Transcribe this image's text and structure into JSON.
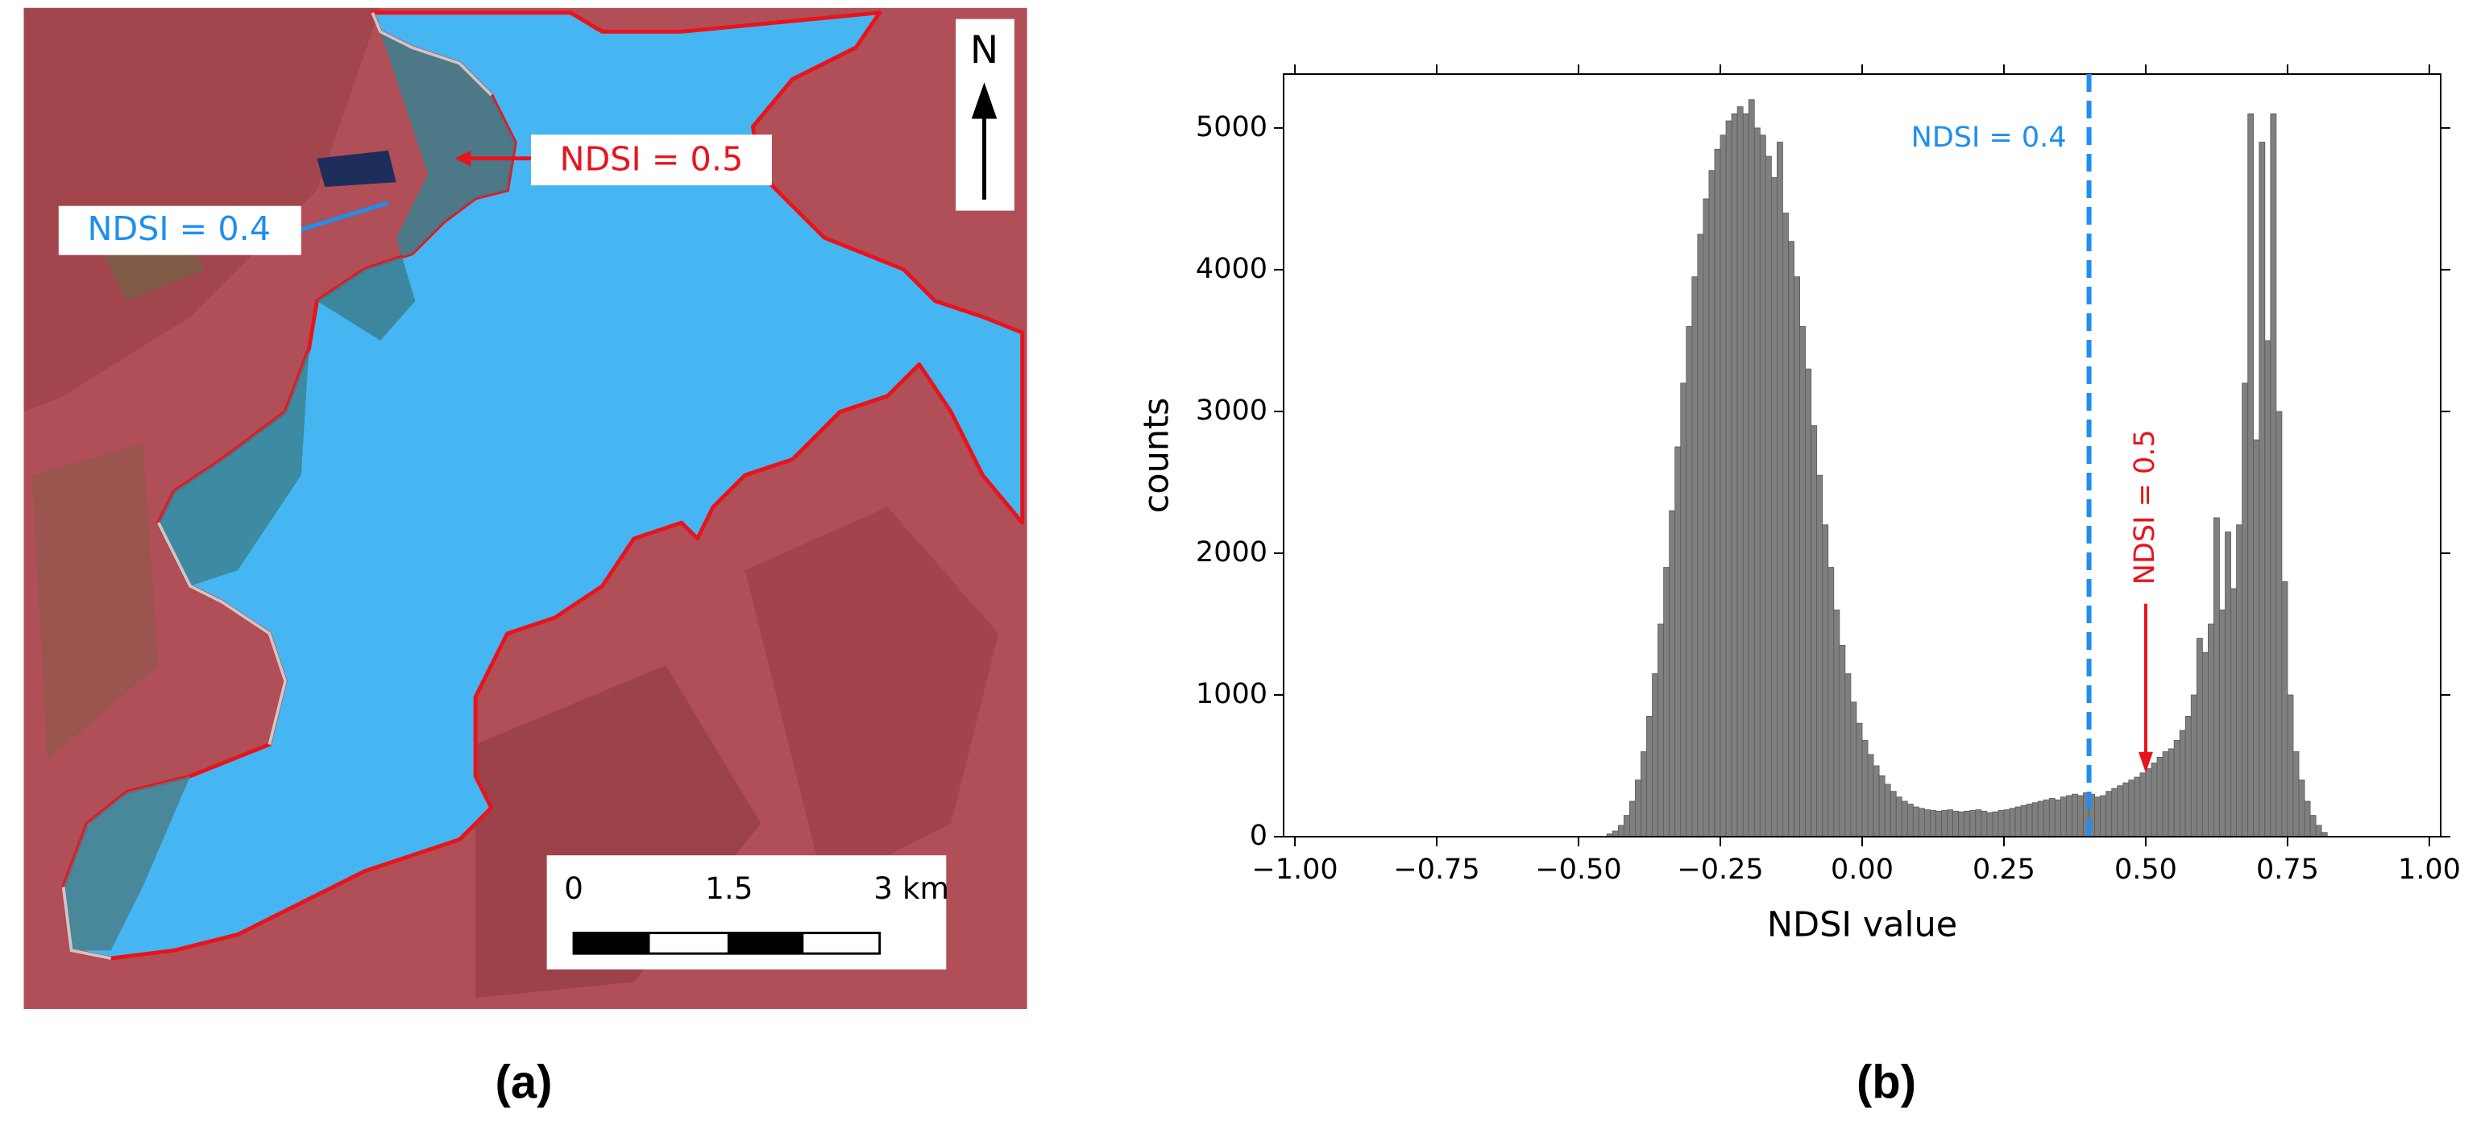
{
  "panel_a": {
    "label": "(a)",
    "north": "N",
    "annotations": [
      "NDSI = 0.4",
      "NDSI = 0.5"
    ],
    "scale_labels": [
      "0",
      "1.5",
      "3 km"
    ]
  },
  "chart_data": {
    "type": "histogram",
    "panel_label": "(b)",
    "xlabel": "NDSI value",
    "ylabel": "counts",
    "color": "#7f7f7f",
    "bins": [
      -0.45,
      -0.44,
      -0.43,
      -0.42,
      -0.41,
      -0.4,
      -0.39,
      -0.38,
      -0.37,
      -0.36,
      -0.35,
      -0.34,
      -0.33,
      -0.32,
      -0.31,
      -0.3,
      -0.29,
      -0.28,
      -0.27,
      -0.26,
      -0.25,
      -0.24,
      -0.23,
      -0.22,
      -0.21,
      -0.2,
      -0.19,
      -0.18,
      -0.17,
      -0.16,
      -0.15,
      -0.14,
      -0.13,
      -0.12,
      -0.11,
      -0.1,
      -0.09,
      -0.08,
      -0.07,
      -0.06,
      -0.05,
      -0.04,
      -0.03,
      -0.02,
      -0.01,
      0.0,
      0.01,
      0.02,
      0.03,
      0.04,
      0.05,
      0.06,
      0.07,
      0.08,
      0.09,
      0.1,
      0.11,
      0.12,
      0.13,
      0.14,
      0.15,
      0.16,
      0.17,
      0.18,
      0.19,
      0.2,
      0.21,
      0.22,
      0.23,
      0.24,
      0.25,
      0.26,
      0.27,
      0.28,
      0.29,
      0.3,
      0.31,
      0.32,
      0.33,
      0.34,
      0.35,
      0.36,
      0.37,
      0.38,
      0.39,
      0.4,
      0.41,
      0.42,
      0.43,
      0.44,
      0.45,
      0.46,
      0.47,
      0.48,
      0.49,
      0.5,
      0.51,
      0.52,
      0.53,
      0.54,
      0.55,
      0.56,
      0.57,
      0.58,
      0.59,
      0.6,
      0.61,
      0.62,
      0.63,
      0.64,
      0.65,
      0.66,
      0.67,
      0.68,
      0.69,
      0.7,
      0.71,
      0.72,
      0.73,
      0.74,
      0.75,
      0.76,
      0.77,
      0.78,
      0.79,
      0.8,
      0.81,
      0.82
    ],
    "counts": [
      20,
      40,
      80,
      150,
      250,
      400,
      600,
      850,
      1150,
      1500,
      1900,
      2300,
      2750,
      3200,
      3600,
      3950,
      4250,
      4500,
      4700,
      4850,
      4950,
      5050,
      5100,
      5150,
      5100,
      5200,
      5000,
      4950,
      4800,
      4650,
      4900,
      4400,
      4200,
      3950,
      3600,
      3300,
      2900,
      2550,
      2200,
      1900,
      1600,
      1350,
      1150,
      950,
      800,
      680,
      580,
      500,
      430,
      370,
      320,
      280,
      250,
      230,
      210,
      200,
      190,
      185,
      180,
      185,
      190,
      180,
      175,
      180,
      185,
      190,
      180,
      170,
      175,
      185,
      190,
      200,
      210,
      220,
      230,
      240,
      250,
      260,
      270,
      260,
      280,
      290,
      300,
      290,
      310,
      300,
      280,
      290,
      320,
      340,
      360,
      380,
      400,
      420,
      450,
      480,
      520,
      560,
      600,
      620,
      680,
      750,
      850,
      1000,
      1400,
      1300,
      1500,
      2250,
      1600,
      2150,
      1750,
      2200,
      3200,
      5100,
      2800,
      4900,
      3500,
      5100,
      3000,
      1800,
      1000,
      600,
      400,
      250,
      150,
      80,
      30
    ],
    "xlim": [
      -1.02,
      1.02
    ],
    "ylim": [
      0,
      5380
    ],
    "xticks": [
      {
        "value": -1,
        "label": "−1.00"
      },
      {
        "value": -0.75,
        "label": "−0.75"
      },
      {
        "value": -0.5,
        "label": "−0.50"
      },
      {
        "value": -0.25,
        "label": "−0.25"
      },
      {
        "value": 0,
        "label": "0.00"
      },
      {
        "value": 0.25,
        "label": "0.25"
      },
      {
        "value": 0.5,
        "label": "0.50"
      },
      {
        "value": 0.75,
        "label": "0.75"
      },
      {
        "value": 1,
        "label": "1.00"
      }
    ],
    "yticks": [
      0,
      1000,
      2000,
      3000,
      4000,
      5000
    ],
    "vlines": [
      {
        "x": 0.4,
        "label": "NDSI = 0.4",
        "color": "#1e8ff0"
      }
    ],
    "annotations": [
      {
        "text": "NDSI = 0.5",
        "x": 0.5,
        "y": 450,
        "color": "#e8141c"
      }
    ]
  }
}
